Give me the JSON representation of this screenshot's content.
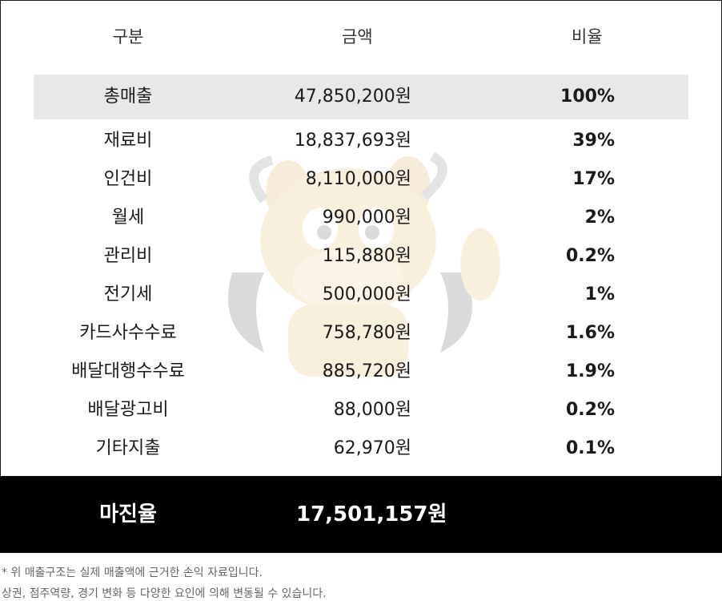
{
  "header": {
    "col_category": "구분",
    "col_amount": "금액",
    "col_ratio": "비율"
  },
  "total_row": {
    "category": "총매출",
    "amount": "47,850,200원",
    "ratio": "100%"
  },
  "rows": [
    {
      "category": "재료비",
      "amount": "18,837,693원",
      "ratio": "39%"
    },
    {
      "category": "인건비",
      "amount": "8,110,000원",
      "ratio": "17%"
    },
    {
      "category": "월세",
      "amount": "990,000원",
      "ratio": "2%"
    },
    {
      "category": "관리비",
      "amount": "115,880원",
      "ratio": "0.2%"
    },
    {
      "category": "전기세",
      "amount": "500,000원",
      "ratio": "1%"
    },
    {
      "category": "카드사수수료",
      "amount": "758,780원",
      "ratio": "1.6%"
    },
    {
      "category": "배달대행수수료",
      "amount": "885,720원",
      "ratio": "1.9%"
    },
    {
      "category": "배달광고비",
      "amount": "88,000원",
      "ratio": "0.2%"
    },
    {
      "category": "기타지출",
      "amount": "62,970원",
      "ratio": "0.1%"
    }
  ],
  "margin": {
    "label": "마진율",
    "amount": "17,501,157원"
  },
  "notes": {
    "line1": "* 위 매출구조는 실제 매출액에 근거한 손익 자료입니다.",
    "line2": "상권, 점주역량, 경기 변화 등 다양한 요인에 의해 변동될 수 있습니다."
  },
  "colors": {
    "highlight_bg": "#e8e8e8",
    "footer_bg": "#000000",
    "watermark": "#e0a030"
  },
  "watermark_icon": "bull-mascot-icon"
}
